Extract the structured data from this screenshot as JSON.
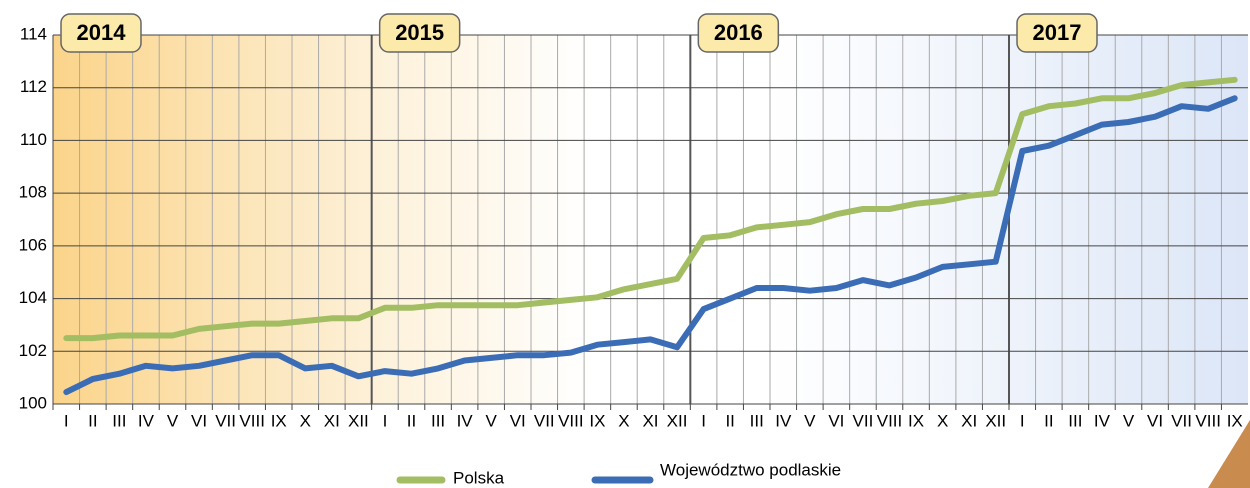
{
  "chart_data": {
    "type": "line",
    "year_labels": [
      "2014",
      "2015",
      "2016",
      "2017"
    ],
    "categories": [
      "I",
      "II",
      "III",
      "IV",
      "V",
      "VI",
      "VII",
      "VIII",
      "IX",
      "X",
      "XI",
      "XII",
      "I",
      "II",
      "III",
      "IV",
      "V",
      "VI",
      "VII",
      "VIII",
      "IX",
      "X",
      "XI",
      "XII",
      "I",
      "II",
      "III",
      "IV",
      "V",
      "VI",
      "VII",
      "VIII",
      "IX",
      "X",
      "XI",
      "XII",
      "I",
      "II",
      "III",
      "IV",
      "V",
      "VI",
      "VII",
      "VIII",
      "IX"
    ],
    "series": [
      {
        "name": "Polska",
        "color": "#a3bd62",
        "values": [
          102.5,
          102.5,
          102.6,
          102.6,
          102.6,
          102.85,
          102.95,
          103.05,
          103.05,
          103.15,
          103.25,
          103.25,
          103.65,
          103.65,
          103.75,
          103.75,
          103.75,
          103.75,
          103.85,
          103.95,
          104.05,
          104.35,
          104.55,
          104.75,
          106.3,
          106.4,
          106.7,
          106.8,
          106.9,
          107.2,
          107.4,
          107.4,
          107.6,
          107.7,
          107.9,
          108.0,
          111.0,
          111.3,
          111.4,
          111.6,
          111.6,
          111.8,
          112.1,
          112.2,
          112.3
        ]
      },
      {
        "name": "Województwo podlaskie",
        "color": "#3b6cb6",
        "values": [
          100.45,
          100.95,
          101.15,
          101.45,
          101.35,
          101.45,
          101.65,
          101.85,
          101.85,
          101.35,
          101.45,
          101.05,
          101.25,
          101.15,
          101.35,
          101.65,
          101.75,
          101.85,
          101.85,
          101.95,
          102.25,
          102.35,
          102.45,
          102.15,
          103.6,
          104.0,
          104.4,
          104.4,
          104.3,
          104.4,
          104.7,
          104.5,
          104.8,
          105.2,
          105.3,
          105.4,
          109.6,
          109.8,
          110.2,
          110.6,
          110.7,
          110.9,
          111.3,
          111.2,
          111.6
        ]
      }
    ],
    "ylim": [
      100,
      114
    ],
    "yticks": [
      100,
      102,
      104,
      106,
      108,
      110,
      112,
      114
    ],
    "grid": true
  }
}
